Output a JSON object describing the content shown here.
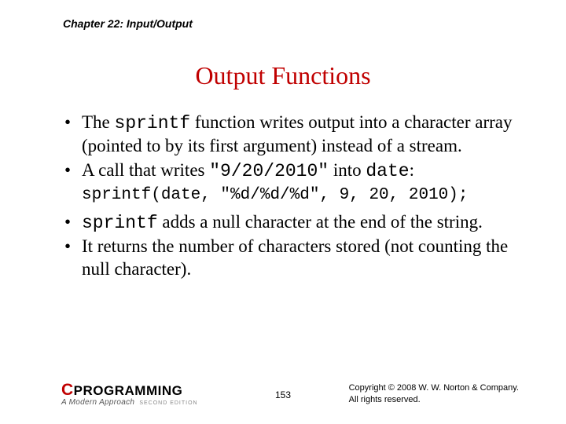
{
  "chapter": "Chapter 22: Input/Output",
  "title": "Output Functions",
  "bullets": {
    "b1_pre": "The ",
    "b1_code": "sprintf",
    "b1_post": " function writes output into a character array (pointed to by its first argument) instead of a stream.",
    "b2_pre": "A call that writes ",
    "b2_code1": "\"9/20/2010\"",
    "b2_mid": " into ",
    "b2_code2": "date",
    "b2_post": ":",
    "code_line": "sprintf(date, \"%d/%d/%d\", 9, 20, 2010);",
    "b3_code": "sprintf",
    "b3_post": " adds a null character at the end of the string.",
    "b4": "It returns the number of characters stored (not counting the null character)."
  },
  "footer": {
    "logo_c": "C",
    "logo_rest": "PROGRAMMING",
    "logo_sub": "A Modern Approach",
    "logo_edition": "SECOND EDITION",
    "page": "153",
    "copyright_l1": "Copyright © 2008 W. W. Norton & Company.",
    "copyright_l2": "All rights reserved."
  },
  "colors": {
    "title": "#c00000",
    "text": "#000000",
    "background": "#ffffff"
  },
  "typography": {
    "chapter_fontsize": 14,
    "title_fontsize": 32,
    "body_fontsize": 23,
    "code_fontsize": 21,
    "footer_fontsize": 11,
    "pagenum_fontsize": 12
  }
}
